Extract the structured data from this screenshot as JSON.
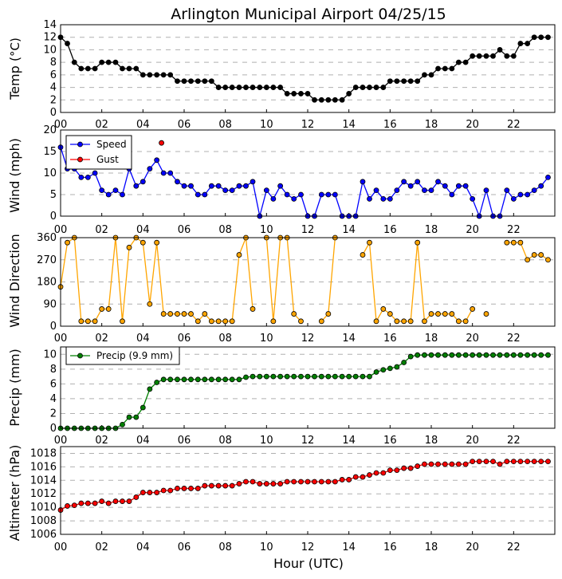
{
  "title": "Arlington Municipal Airport 04/25/15",
  "xlabel": "Hour (UTC)",
  "x_ticks": [
    "00",
    "02",
    "04",
    "06",
    "08",
    "10",
    "12",
    "14",
    "16",
    "18",
    "20",
    "22"
  ],
  "chart_data": [
    {
      "type": "line",
      "ylabel": "Temp (°C)",
      "ylabel_main": "Temp (",
      "ylabel_unit": "°C)",
      "ylim": [
        0,
        14
      ],
      "yticks": [
        0,
        2,
        4,
        6,
        8,
        10,
        12,
        14
      ],
      "grid": true,
      "series": [
        {
          "name": "Temp",
          "color": "#000000",
          "x": [
            0,
            0.33,
            0.67,
            1,
            1.33,
            1.67,
            2,
            2.33,
            2.67,
            3,
            3.33,
            3.67,
            4,
            4.33,
            4.67,
            5,
            5.33,
            5.67,
            6,
            6.33,
            6.67,
            7,
            7.33,
            7.67,
            8,
            8.33,
            8.67,
            9,
            9.33,
            9.67,
            10,
            10.33,
            10.67,
            11,
            11.33,
            11.67,
            12,
            12.33,
            12.67,
            13,
            13.33,
            13.67,
            14,
            14.33,
            14.67,
            15,
            15.33,
            15.67,
            16,
            16.33,
            16.67,
            17,
            17.33,
            17.67,
            18,
            18.33,
            18.67,
            19,
            19.33,
            19.67,
            20,
            20.33,
            20.67,
            21,
            21.33,
            21.67,
            22,
            22.33,
            22.67,
            23,
            23.33,
            23.67
          ],
          "values": [
            12,
            11,
            8,
            7,
            7,
            7,
            8,
            8,
            8,
            7,
            7,
            7,
            6,
            6,
            6,
            6,
            6,
            5,
            5,
            5,
            5,
            5,
            5,
            4,
            4,
            4,
            4,
            4,
            4,
            4,
            4,
            4,
            4,
            3,
            3,
            3,
            3,
            2,
            2,
            2,
            2,
            2,
            3,
            4,
            4,
            4,
            4,
            4,
            5,
            5,
            5,
            5,
            5,
            6,
            6,
            7,
            7,
            7,
            8,
            8,
            9,
            9,
            9,
            9,
            10,
            9,
            9,
            11,
            11,
            12,
            12,
            12
          ]
        }
      ]
    },
    {
      "type": "line",
      "ylabel": "Wind (mph)",
      "ylim": [
        0,
        20
      ],
      "yticks": [
        0,
        5,
        10,
        15,
        20
      ],
      "grid": true,
      "legend": "upper left",
      "series": [
        {
          "name": "Speed",
          "color": "#0000ff",
          "x": [
            0,
            0.33,
            0.67,
            1,
            1.33,
            1.67,
            2,
            2.33,
            2.67,
            3,
            3.33,
            3.67,
            4,
            4.33,
            4.67,
            5,
            5.33,
            5.67,
            6,
            6.33,
            6.67,
            7,
            7.33,
            7.67,
            8,
            8.33,
            8.67,
            9,
            9.33,
            9.67,
            10,
            10.33,
            10.67,
            11,
            11.33,
            11.67,
            12,
            12.33,
            12.67,
            13,
            13.33,
            13.67,
            14,
            14.33,
            14.67,
            15,
            15.33,
            15.67,
            16,
            16.33,
            16.67,
            17,
            17.33,
            17.67,
            18,
            18.33,
            18.67,
            19,
            19.33,
            19.67,
            20,
            20.33,
            20.67,
            21,
            21.33,
            21.67,
            22,
            22.33,
            22.67,
            23,
            23.33,
            23.67
          ],
          "values": [
            16,
            11,
            11,
            9,
            9,
            10,
            6,
            5,
            6,
            5,
            11,
            7,
            8,
            11,
            13,
            10,
            10,
            8,
            7,
            7,
            5,
            5,
            7,
            7,
            6,
            6,
            7,
            7,
            8,
            0,
            6,
            4,
            7,
            5,
            4,
            5,
            0,
            0,
            5,
            5,
            5,
            0,
            0,
            0,
            8,
            4,
            6,
            4,
            4,
            6,
            8,
            7,
            8,
            6,
            6,
            8,
            7,
            5,
            7,
            7,
            4,
            0,
            6,
            0,
            0,
            6,
            4,
            5,
            5,
            6,
            7,
            9
          ]
        },
        {
          "name": "Gust",
          "color": "#ff0000",
          "x": [
            4.9
          ],
          "values": [
            17
          ]
        }
      ]
    },
    {
      "type": "scatter",
      "ylabel": "Wind Direction",
      "ylim": [
        0,
        360
      ],
      "yticks": [
        0,
        90,
        180,
        270,
        360
      ],
      "grid": true,
      "series": [
        {
          "name": "Direction",
          "color": "#ffa500",
          "x": [
            0,
            0.33,
            0.67,
            1,
            1.33,
            1.67,
            2,
            2.33,
            2.67,
            3,
            3.33,
            3.67,
            4,
            4.33,
            4.67,
            5,
            5.33,
            5.67,
            6,
            6.33,
            6.67,
            7,
            7.33,
            7.67,
            8,
            8.33,
            8.67,
            9,
            9.33,
            9.67,
            10,
            10.33,
            10.67,
            11,
            11.33,
            11.67,
            12,
            12.33,
            12.67,
            13,
            13.33,
            13.67,
            14,
            14.33,
            14.67,
            15,
            15.33,
            15.67,
            16,
            16.33,
            16.67,
            17,
            17.33,
            17.67,
            18,
            18.33,
            18.67,
            19,
            19.33,
            19.67,
            20,
            20.33,
            20.67,
            21,
            21.33,
            21.67,
            22,
            22.33,
            22.67,
            23,
            23.33,
            23.67
          ],
          "values": [
            160,
            340,
            360,
            20,
            20,
            20,
            70,
            70,
            360,
            20,
            320,
            360,
            340,
            90,
            340,
            50,
            50,
            50,
            50,
            50,
            20,
            50,
            20,
            20,
            20,
            20,
            290,
            360,
            70,
            null,
            360,
            20,
            360,
            360,
            50,
            20,
            null,
            null,
            20,
            50,
            360,
            null,
            null,
            null,
            290,
            340,
            20,
            70,
            50,
            20,
            20,
            20,
            340,
            20,
            50,
            50,
            50,
            50,
            20,
            20,
            70,
            null,
            50,
            null,
            null,
            340,
            340,
            340,
            270,
            290,
            290,
            270
          ]
        }
      ]
    },
    {
      "type": "line",
      "ylabel": "Precip (mm)",
      "ylim": [
        0,
        11
      ],
      "yticks": [
        0,
        2,
        4,
        6,
        8,
        10
      ],
      "grid": true,
      "legend": "upper left",
      "series": [
        {
          "name": "Precip (9.9 mm)",
          "color": "#008000",
          "x": [
            0,
            0.33,
            0.67,
            1,
            1.33,
            1.67,
            2,
            2.33,
            2.67,
            3,
            3.33,
            3.67,
            4,
            4.33,
            4.67,
            5,
            5.33,
            5.67,
            6,
            6.33,
            6.67,
            7,
            7.33,
            7.67,
            8,
            8.33,
            8.67,
            9,
            9.33,
            9.67,
            10,
            10.33,
            10.67,
            11,
            11.33,
            11.67,
            12,
            12.33,
            12.67,
            13,
            13.33,
            13.67,
            14,
            14.33,
            14.67,
            15,
            15.33,
            15.67,
            16,
            16.33,
            16.67,
            17,
            17.33,
            17.67,
            18,
            18.33,
            18.67,
            19,
            19.33,
            19.67,
            20,
            20.33,
            20.67,
            21,
            21.33,
            21.67,
            22,
            22.33,
            22.67,
            23,
            23.33,
            23.67
          ],
          "values": [
            0,
            0,
            0,
            0,
            0,
            0,
            0,
            0,
            0,
            0.5,
            1.5,
            1.5,
            2.8,
            5.3,
            6.2,
            6.6,
            6.6,
            6.6,
            6.6,
            6.6,
            6.6,
            6.6,
            6.6,
            6.6,
            6.6,
            6.6,
            6.6,
            6.9,
            7,
            7,
            7,
            7,
            7,
            7,
            7,
            7,
            7,
            7,
            7,
            7,
            7,
            7,
            7,
            7,
            7,
            7,
            7.6,
            7.9,
            8.1,
            8.3,
            8.9,
            9.7,
            9.9,
            9.9,
            9.9,
            9.9,
            9.9,
            9.9,
            9.9,
            9.9,
            9.9,
            9.9,
            9.9,
            9.9,
            9.9,
            9.9,
            9.9,
            9.9,
            9.9,
            9.9,
            9.9,
            9.9
          ]
        }
      ]
    },
    {
      "type": "line",
      "ylabel": "Altimeter (hPa)",
      "ylim": [
        1006,
        1019
      ],
      "yticks": [
        1006,
        1008,
        1010,
        1012,
        1014,
        1016,
        1018
      ],
      "grid": true,
      "series": [
        {
          "name": "Altimeter",
          "color": "#ff0000",
          "x": [
            0,
            0.33,
            0.67,
            1,
            1.33,
            1.67,
            2,
            2.33,
            2.67,
            3,
            3.33,
            3.67,
            4,
            4.33,
            4.67,
            5,
            5.33,
            5.67,
            6,
            6.33,
            6.67,
            7,
            7.33,
            7.67,
            8,
            8.33,
            8.67,
            9,
            9.33,
            9.67,
            10,
            10.33,
            10.67,
            11,
            11.33,
            11.67,
            12,
            12.33,
            12.67,
            13,
            13.33,
            13.67,
            14,
            14.33,
            14.67,
            15,
            15.33,
            15.67,
            16,
            16.33,
            16.67,
            17,
            17.33,
            17.67,
            18,
            18.33,
            18.67,
            19,
            19.33,
            19.67,
            20,
            20.33,
            20.67,
            21,
            21.33,
            21.67,
            22,
            22.33,
            22.67,
            23,
            23.33,
            23.67
          ],
          "values": [
            1009.6,
            1010.2,
            1010.3,
            1010.6,
            1010.6,
            1010.6,
            1010.9,
            1010.6,
            1010.9,
            1010.9,
            1010.9,
            1011.5,
            1012.2,
            1012.2,
            1012.2,
            1012.5,
            1012.5,
            1012.8,
            1012.8,
            1012.8,
            1012.8,
            1013.2,
            1013.2,
            1013.2,
            1013.2,
            1013.2,
            1013.5,
            1013.8,
            1013.8,
            1013.5,
            1013.5,
            1013.5,
            1013.5,
            1013.8,
            1013.8,
            1013.8,
            1013.8,
            1013.8,
            1013.8,
            1013.8,
            1013.8,
            1014.1,
            1014.1,
            1014.5,
            1014.5,
            1014.8,
            1015.1,
            1015.1,
            1015.5,
            1015.5,
            1015.8,
            1015.8,
            1016.1,
            1016.4,
            1016.4,
            1016.4,
            1016.4,
            1016.4,
            1016.4,
            1016.4,
            1016.8,
            1016.8,
            1016.8,
            1016.8,
            1016.4,
            1016.8,
            1016.8,
            1016.8,
            1016.8,
            1016.8,
            1016.8,
            1016.8
          ]
        }
      ]
    }
  ]
}
